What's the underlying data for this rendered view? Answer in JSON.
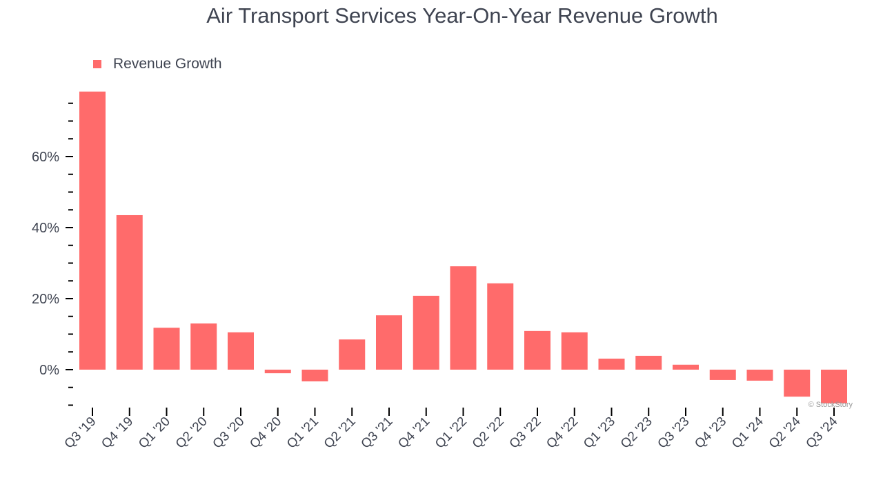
{
  "chart_data": {
    "type": "bar",
    "title": "Air Transport Services Year-On-Year Revenue Growth",
    "legend": {
      "label": "Revenue Growth",
      "placement": "top-left"
    },
    "categories": [
      "Q3 '19",
      "Q4 '19",
      "Q1 '20",
      "Q2 '20",
      "Q3 '20",
      "Q4 '20",
      "Q1 '21",
      "Q2 '21",
      "Q3 '21",
      "Q4 '21",
      "Q1 '22",
      "Q2 '22",
      "Q3 '22",
      "Q4 '22",
      "Q1 '23",
      "Q2 '23",
      "Q3 '23",
      "Q4 '23",
      "Q1 '24",
      "Q2 '24",
      "Q3 '24"
    ],
    "series": [
      {
        "name": "Revenue Growth",
        "values": [
          78.3,
          43.5,
          11.8,
          13.0,
          10.5,
          -1.0,
          -3.3,
          8.5,
          15.3,
          20.8,
          29.1,
          24.3,
          10.9,
          10.5,
          3.1,
          3.9,
          1.4,
          -2.9,
          -3.1,
          -7.6,
          -9.5
        ]
      }
    ],
    "y_ticks": [
      {
        "value": 0,
        "label": "0%"
      },
      {
        "value": 20,
        "label": "20%"
      },
      {
        "value": 40,
        "label": "40%"
      },
      {
        "value": 60,
        "label": "60%"
      }
    ],
    "y_minor_step": 5,
    "ylim": [
      -11,
      80
    ],
    "grid": false,
    "colors": {
      "bar": "#ff6b6b",
      "text": "#3f4451"
    },
    "watermark": "© StockStory"
  }
}
